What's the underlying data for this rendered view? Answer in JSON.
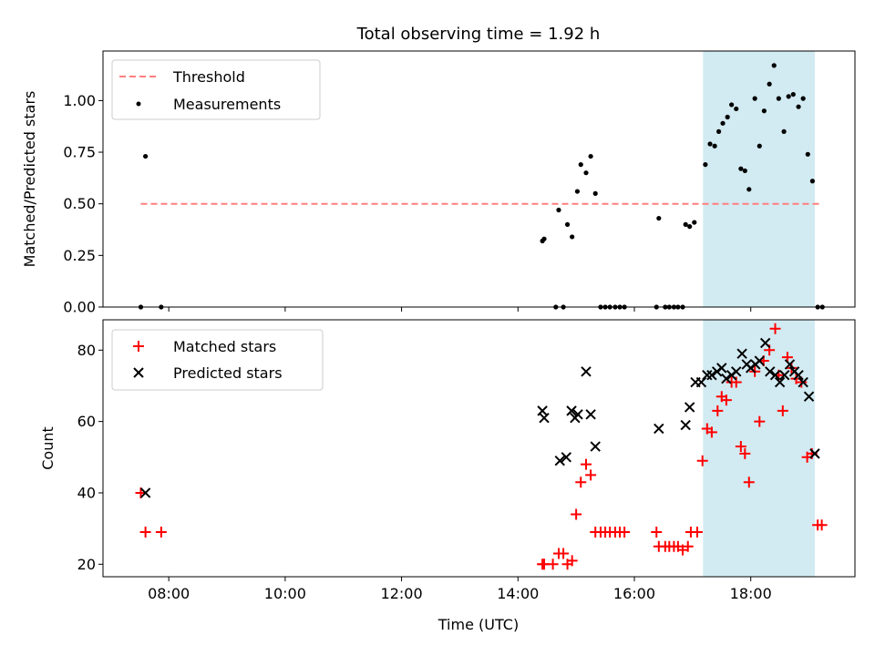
{
  "figure": {
    "title": "Total observing time = 1.92 h"
  },
  "chart_data": [
    {
      "type": "scatter",
      "ylabel": "Matched/Predicted stars",
      "xlim": [
        6.87,
        19.79
      ],
      "ylim": [
        0.0,
        1.24
      ],
      "yticks": [
        0.0,
        0.25,
        0.5,
        0.75,
        1.0
      ],
      "ytick_labels": [
        "0.00",
        "0.25",
        "0.50",
        "0.75",
        "1.00"
      ],
      "xticks": [
        8,
        10,
        12,
        14,
        16,
        18
      ],
      "shaded_interval": [
        17.18,
        19.1
      ],
      "shaded_color": "#add8e6",
      "legend": {
        "placement": "upper-left",
        "entries": [
          "Threshold",
          "Measurements"
        ]
      },
      "threshold": {
        "name": "Threshold",
        "value": 0.5,
        "x_range": [
          7.52,
          19.2
        ],
        "color": "#ff7f7f",
        "style": "dashed"
      },
      "series": [
        {
          "name": "Measurements",
          "marker": "dot",
          "color": "#000000",
          "points": [
            [
              7.52,
              0.0
            ],
            [
              7.6,
              0.73
            ],
            [
              7.87,
              0.0
            ],
            [
              14.42,
              0.32
            ],
            [
              14.45,
              0.33
            ],
            [
              14.65,
              0.0
            ],
            [
              14.7,
              0.47
            ],
            [
              14.78,
              0.0
            ],
            [
              14.85,
              0.4
            ],
            [
              14.93,
              0.34
            ],
            [
              15.02,
              0.56
            ],
            [
              15.08,
              0.69
            ],
            [
              15.17,
              0.65
            ],
            [
              15.25,
              0.73
            ],
            [
              15.33,
              0.55
            ],
            [
              15.42,
              0.0
            ],
            [
              15.5,
              0.0
            ],
            [
              15.58,
              0.0
            ],
            [
              15.67,
              0.0
            ],
            [
              15.75,
              0.0
            ],
            [
              15.83,
              0.0
            ],
            [
              16.38,
              0.0
            ],
            [
              16.42,
              0.43
            ],
            [
              16.53,
              0.0
            ],
            [
              16.6,
              0.0
            ],
            [
              16.68,
              0.0
            ],
            [
              16.75,
              0.0
            ],
            [
              16.83,
              0.0
            ],
            [
              16.88,
              0.4
            ],
            [
              16.95,
              0.39
            ],
            [
              17.03,
              0.41
            ],
            [
              17.22,
              0.69
            ],
            [
              17.3,
              0.79
            ],
            [
              17.38,
              0.78
            ],
            [
              17.45,
              0.85
            ],
            [
              17.52,
              0.89
            ],
            [
              17.6,
              0.92
            ],
            [
              17.67,
              0.98
            ],
            [
              17.75,
              0.96
            ],
            [
              17.83,
              0.67
            ],
            [
              17.9,
              0.66
            ],
            [
              17.97,
              0.57
            ],
            [
              18.07,
              1.01
            ],
            [
              18.15,
              0.78
            ],
            [
              18.23,
              0.95
            ],
            [
              18.32,
              1.08
            ],
            [
              18.4,
              1.17
            ],
            [
              18.48,
              1.01
            ],
            [
              18.57,
              0.85
            ],
            [
              18.65,
              1.02
            ],
            [
              18.73,
              1.03
            ],
            [
              18.82,
              0.97
            ],
            [
              18.9,
              1.01
            ],
            [
              18.98,
              0.74
            ],
            [
              19.06,
              0.61
            ],
            [
              19.15,
              0.0
            ],
            [
              19.23,
              0.0
            ]
          ]
        }
      ]
    },
    {
      "type": "scatter",
      "xlabel": "Time (UTC)",
      "ylabel": "Count",
      "xlim": [
        6.87,
        19.79
      ],
      "ylim": [
        16.5,
        88.5
      ],
      "yticks": [
        20,
        40,
        60,
        80
      ],
      "ytick_labels": [
        "20",
        "40",
        "60",
        "80"
      ],
      "xticks": [
        8,
        10,
        12,
        14,
        16,
        18
      ],
      "xtick_labels": [
        "08:00",
        "10:00",
        "12:00",
        "14:00",
        "16:00",
        "18:00"
      ],
      "shaded_interval": [
        17.18,
        19.1
      ],
      "shaded_color": "#add8e6",
      "legend": {
        "placement": "upper-left",
        "entries": [
          "Matched stars",
          "Predicted stars"
        ]
      },
      "series": [
        {
          "name": "Matched stars",
          "marker": "plus",
          "color": "#ff0000",
          "points": [
            [
              7.52,
              40
            ],
            [
              7.6,
              29
            ],
            [
              7.87,
              29
            ],
            [
              14.42,
              20
            ],
            [
              14.45,
              20
            ],
            [
              14.6,
              20
            ],
            [
              14.7,
              23
            ],
            [
              14.78,
              23
            ],
            [
              14.85,
              20
            ],
            [
              14.93,
              21
            ],
            [
              15.0,
              34
            ],
            [
              15.08,
              43
            ],
            [
              15.17,
              48
            ],
            [
              15.25,
              45
            ],
            [
              15.33,
              29
            ],
            [
              15.42,
              29
            ],
            [
              15.5,
              29
            ],
            [
              15.58,
              29
            ],
            [
              15.67,
              29
            ],
            [
              15.75,
              29
            ],
            [
              15.83,
              29
            ],
            [
              16.38,
              29
            ],
            [
              16.42,
              25
            ],
            [
              16.53,
              25
            ],
            [
              16.6,
              25
            ],
            [
              16.68,
              25
            ],
            [
              16.75,
              25
            ],
            [
              16.83,
              24
            ],
            [
              16.92,
              25
            ],
            [
              16.97,
              29
            ],
            [
              17.08,
              29
            ],
            [
              17.17,
              49
            ],
            [
              17.25,
              58
            ],
            [
              17.33,
              57
            ],
            [
              17.43,
              63
            ],
            [
              17.5,
              67
            ],
            [
              17.58,
              66
            ],
            [
              17.67,
              71
            ],
            [
              17.75,
              71
            ],
            [
              17.83,
              53
            ],
            [
              17.9,
              51
            ],
            [
              17.97,
              43
            ],
            [
              18.07,
              74
            ],
            [
              18.15,
              60
            ],
            [
              18.22,
              77
            ],
            [
              18.32,
              80
            ],
            [
              18.42,
              86
            ],
            [
              18.48,
              73
            ],
            [
              18.55,
              63
            ],
            [
              18.63,
              78
            ],
            [
              18.7,
              75
            ],
            [
              18.78,
              72
            ],
            [
              18.87,
              71
            ],
            [
              18.97,
              50
            ],
            [
              19.05,
              51
            ],
            [
              19.15,
              31
            ],
            [
              19.22,
              31
            ]
          ]
        },
        {
          "name": "Predicted stars",
          "marker": "x",
          "color": "#000000",
          "points": [
            [
              7.6,
              40
            ],
            [
              14.42,
              63
            ],
            [
              14.45,
              61
            ],
            [
              14.72,
              49
            ],
            [
              14.83,
              50
            ],
            [
              14.92,
              63
            ],
            [
              14.98,
              61
            ],
            [
              15.03,
              62
            ],
            [
              15.17,
              74
            ],
            [
              15.25,
              62
            ],
            [
              15.33,
              53
            ],
            [
              16.42,
              58
            ],
            [
              16.88,
              59
            ],
            [
              16.95,
              64
            ],
            [
              17.05,
              71
            ],
            [
              17.15,
              71
            ],
            [
              17.25,
              73
            ],
            [
              17.33,
              73
            ],
            [
              17.42,
              74
            ],
            [
              17.5,
              75
            ],
            [
              17.58,
              72
            ],
            [
              17.67,
              73
            ],
            [
              17.75,
              74
            ],
            [
              17.85,
              79
            ],
            [
              17.93,
              76
            ],
            [
              18.0,
              75
            ],
            [
              18.08,
              76
            ],
            [
              18.15,
              77
            ],
            [
              18.25,
              82
            ],
            [
              18.33,
              74
            ],
            [
              18.42,
              73
            ],
            [
              18.5,
              71
            ],
            [
              18.58,
              73
            ],
            [
              18.67,
              76
            ],
            [
              18.75,
              74
            ],
            [
              18.82,
              73
            ],
            [
              18.9,
              71
            ],
            [
              19.0,
              67
            ],
            [
              19.1,
              51
            ]
          ]
        }
      ]
    }
  ]
}
